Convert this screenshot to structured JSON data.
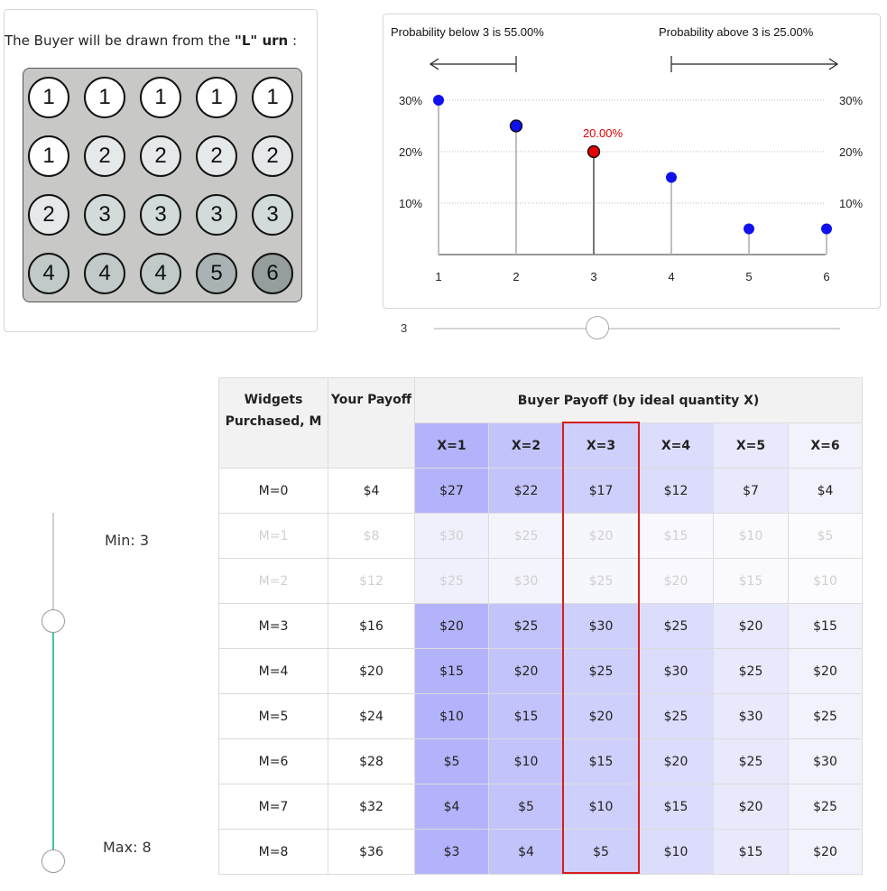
{
  "urn": {
    "caption_prefix": "The Buyer will be drawn from the ",
    "caption_bold": "\"L\" urn",
    "caption_suffix": " :",
    "rows": [
      [
        "1",
        "1",
        "1",
        "1",
        "1"
      ],
      [
        "1",
        "2",
        "2",
        "2",
        "2"
      ],
      [
        "2",
        "3",
        "3",
        "3",
        "3"
      ],
      [
        "4",
        "4",
        "4",
        "5",
        "6"
      ]
    ],
    "ball_colors": {
      "1": "#ffffff",
      "2": "#e6e9e9",
      "3": "#d3dada",
      "4": "#c1c9c9",
      "5": "#aab3b3",
      "6": "#959e9d"
    }
  },
  "prob_chart": {
    "below_text": "Probability below 3 is 55.00%",
    "above_text": "Probability above 3 is 25.00%",
    "selected_label": "20.00%"
  },
  "chart_data": {
    "type": "scatter",
    "title": "",
    "x": [
      1,
      2,
      3,
      4,
      5,
      6
    ],
    "values": [
      30,
      25,
      20,
      15,
      5,
      5
    ],
    "selected_x": 3,
    "ylim": [
      0,
      30
    ],
    "y_ticks": [
      "10%",
      "20%",
      "30%"
    ],
    "x_ticks": [
      "1",
      "2",
      "3",
      "4",
      "5",
      "6"
    ],
    "point_color": "#1111ee",
    "selected_color": "#e00000"
  },
  "x_slider": {
    "value": "3",
    "min": 1,
    "max": 6
  },
  "m_range": {
    "min_label": "Min: 3",
    "max_label": "Max: 8",
    "min": 3,
    "max": 8
  },
  "table": {
    "col_m": "Widgets Purchased, M",
    "col_payoff": "Your Payoff",
    "col_buyer": "Buyer Payoff (by ideal quantity X)",
    "x_headers": [
      "X=1",
      "X=2",
      "X=3",
      "X=4",
      "X=5",
      "X=6"
    ],
    "rows": [
      {
        "m": "M=0",
        "pay": "$4",
        "cells": [
          "$27",
          "$22",
          "$17",
          "$12",
          "$7",
          "$4"
        ],
        "dim": false
      },
      {
        "m": "M=1",
        "pay": "$8",
        "cells": [
          "$30",
          "$25",
          "$20",
          "$15",
          "$10",
          "$5"
        ],
        "dim": true
      },
      {
        "m": "M=2",
        "pay": "$12",
        "cells": [
          "$25",
          "$30",
          "$25",
          "$20",
          "$15",
          "$10"
        ],
        "dim": true
      },
      {
        "m": "M=3",
        "pay": "$16",
        "cells": [
          "$20",
          "$25",
          "$30",
          "$25",
          "$20",
          "$15"
        ],
        "dim": false
      },
      {
        "m": "M=4",
        "pay": "$20",
        "cells": [
          "$15",
          "$20",
          "$25",
          "$30",
          "$25",
          "$20"
        ],
        "dim": false
      },
      {
        "m": "M=5",
        "pay": "$24",
        "cells": [
          "$10",
          "$15",
          "$20",
          "$25",
          "$30",
          "$25"
        ],
        "dim": false
      },
      {
        "m": "M=6",
        "pay": "$28",
        "cells": [
          "$5",
          "$10",
          "$15",
          "$20",
          "$25",
          "$30"
        ],
        "dim": false
      },
      {
        "m": "M=7",
        "pay": "$32",
        "cells": [
          "$4",
          "$5",
          "$10",
          "$15",
          "$20",
          "$25"
        ],
        "dim": false
      },
      {
        "m": "M=8",
        "pay": "$36",
        "cells": [
          "$3",
          "$4",
          "$5",
          "$10",
          "$15",
          "$20"
        ],
        "dim": false
      }
    ],
    "col_colors": [
      "#b3b3fb",
      "#c3c3fb",
      "#cfcffb",
      "#dcdcfc",
      "#e9e9fc",
      "#f2f2fd"
    ],
    "col_colors_dim": [
      "#f0f0fd",
      "#f4f4fd",
      "#f6f6fd",
      "#f8f8fe",
      "#fafafe",
      "#fcfcfe"
    ],
    "highlight_color": "#d61d1d"
  }
}
